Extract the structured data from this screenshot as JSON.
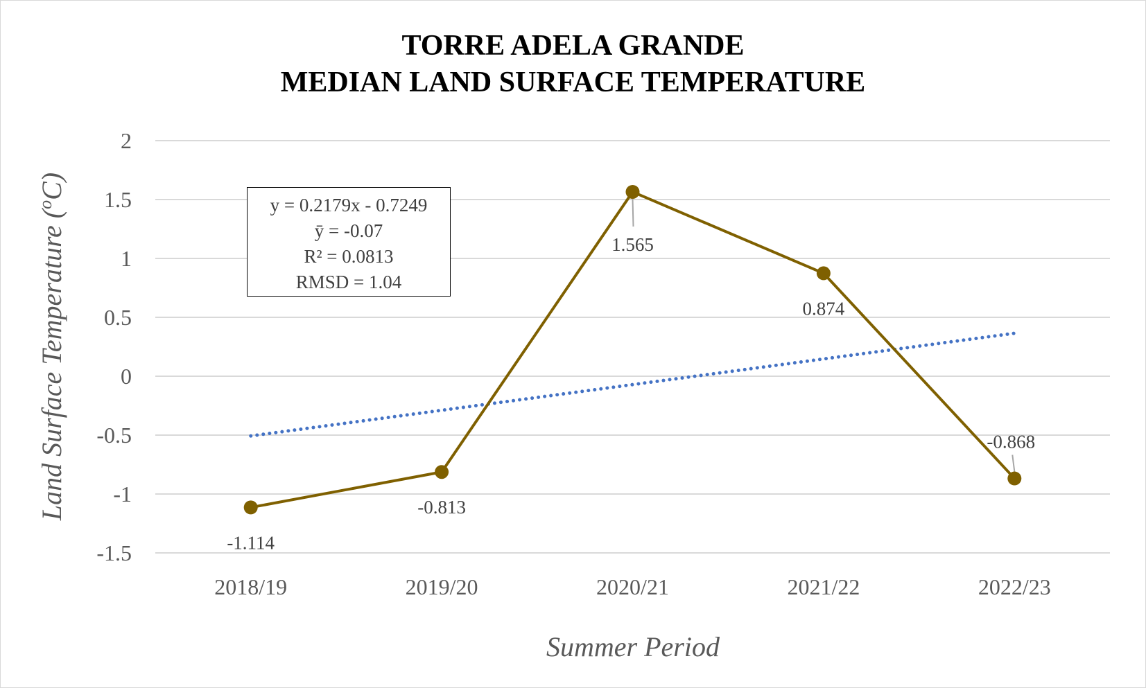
{
  "chart_data": {
    "type": "line",
    "title": [
      "TORRE ADELA GRANDE",
      "MEDIAN LAND SURFACE TEMPERATURE"
    ],
    "xlabel": "Summer Period",
    "ylabel": "Land Surface Temperature (°C)",
    "ylabel_parts": {
      "main": "Land Surface Temperature (",
      "sup": "o",
      "end": "C)"
    },
    "categories": [
      "2018/19",
      "2019/20",
      "2020/21",
      "2021/22",
      "2022/23"
    ],
    "series": [
      {
        "values": [
          -1.114,
          -0.813,
          1.565,
          0.874,
          -0.868
        ],
        "labels": [
          "-1.114",
          "-0.813",
          "1.565",
          "0.874",
          "-0.868"
        ],
        "color": "#7f6000",
        "marker": "circle"
      }
    ],
    "trendline": {
      "type": "linear",
      "slope": 0.2179,
      "intercept": -0.7249,
      "color": "#4472c4",
      "style": "dotted"
    },
    "annotation": [
      "y = 0.2179x - 0.7249",
      "ȳ = -0.07",
      "R² = 0.0813",
      "RMSD = 1.04"
    ],
    "ylim": [
      -1.5,
      2
    ],
    "yticks": [
      2,
      1.5,
      1,
      0.5,
      0,
      -0.5,
      -1,
      -1.5
    ],
    "ytick_labels": [
      "2",
      "1.5",
      "1",
      "0.5",
      "0",
      "-0.5",
      "-1",
      "-1.5"
    ],
    "grid": true,
    "gridline_color": "#d9d9d9",
    "legend": false
  }
}
